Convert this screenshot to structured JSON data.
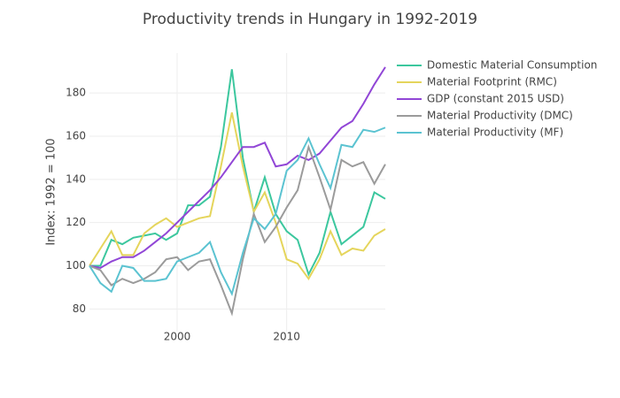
{
  "chart_data": {
    "type": "line",
    "title": "Productivity trends in Hungary in 1992-2019",
    "y_label": "Index: 1992 = 100",
    "x": [
      1992,
      1993,
      1994,
      1995,
      1996,
      1997,
      1998,
      1999,
      2000,
      2001,
      2002,
      2003,
      2004,
      2005,
      2006,
      2007,
      2008,
      2009,
      2010,
      2011,
      2012,
      2013,
      2014,
      2015,
      2016,
      2017,
      2018,
      2019
    ],
    "xlim": [
      1992,
      2019
    ],
    "xticks": [
      2000,
      2010
    ],
    "ylim": [
      69.5,
      198.5
    ],
    "yticks": [
      80,
      100,
      120,
      140,
      160,
      180
    ],
    "grid": true,
    "legend": "right",
    "series": [
      {
        "name": "Domestic Material Consumption",
        "color": "#3cc79e",
        "values": [
          100,
          100,
          112,
          110,
          113,
          114,
          115,
          112,
          115,
          128,
          128,
          132,
          155,
          191,
          150,
          125,
          141,
          124,
          116,
          112,
          96,
          106,
          125,
          110,
          114,
          118,
          134,
          131
        ]
      },
      {
        "name": "Material Footprint (RMC)",
        "color": "#e5d55c",
        "values": [
          100,
          108,
          116,
          105,
          105,
          115,
          119,
          122,
          118,
          120,
          122,
          123,
          146,
          171,
          146,
          125,
          134,
          120,
          103,
          101,
          94,
          103,
          116,
          105,
          108,
          107,
          114,
          117
        ]
      },
      {
        "name": "GDP (constant 2015 USD)",
        "color": "#9146d6",
        "values": [
          100,
          99,
          102,
          104,
          104,
          107,
          111,
          115,
          120,
          125,
          130,
          135,
          141,
          148,
          155,
          155,
          157,
          146,
          147,
          151,
          149,
          152,
          158,
          164,
          167,
          175,
          184,
          192
        ]
      },
      {
        "name": "Material Productivity (DMC)",
        "color": "#9b9b9b",
        "values": [
          100,
          98,
          91,
          94,
          92,
          94,
          97,
          103,
          104,
          98,
          102,
          103,
          91,
          78,
          103,
          124,
          111,
          118,
          127,
          135,
          155,
          141,
          126,
          149,
          146,
          148,
          138,
          147
        ]
      },
      {
        "name": "Material Productivity (MF)",
        "color": "#5bc3d1",
        "values": [
          100,
          92,
          88,
          100,
          99,
          93,
          93,
          94,
          102,
          104,
          106,
          111,
          97,
          87,
          106,
          122,
          117,
          124,
          144,
          149,
          159,
          147,
          136,
          156,
          155,
          163,
          162,
          164
        ]
      }
    ]
  }
}
